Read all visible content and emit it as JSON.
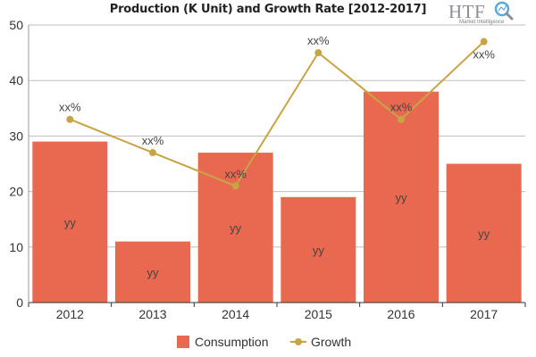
{
  "chart_data": {
    "type": "bar",
    "title": "Production (K Unit) and Growth Rate [2012-2017]",
    "categories": [
      "2012",
      "2013",
      "2014",
      "2015",
      "2016",
      "2017"
    ],
    "series": [
      {
        "name": "Consumption",
        "type": "bar",
        "values": [
          29,
          11,
          27,
          19,
          38,
          25
        ],
        "data_labels": [
          "yy",
          "yy",
          "yy",
          "yy",
          "yy",
          "yy"
        ],
        "color": "#e8694f"
      },
      {
        "name": "Growth",
        "type": "line",
        "values": [
          33,
          27,
          21,
          45,
          33,
          47
        ],
        "data_labels": [
          "xx%",
          "xx%",
          "xx%",
          "xx%",
          "xx%",
          "xx%"
        ],
        "color": "#c9a445"
      }
    ],
    "ylim": [
      0,
      50
    ],
    "yticks": [
      0,
      10,
      20,
      30,
      40,
      50
    ],
    "grid": true,
    "legend_position": "bottom"
  },
  "logo": {
    "main": "HTF",
    "sub": "Market Intelligence"
  }
}
